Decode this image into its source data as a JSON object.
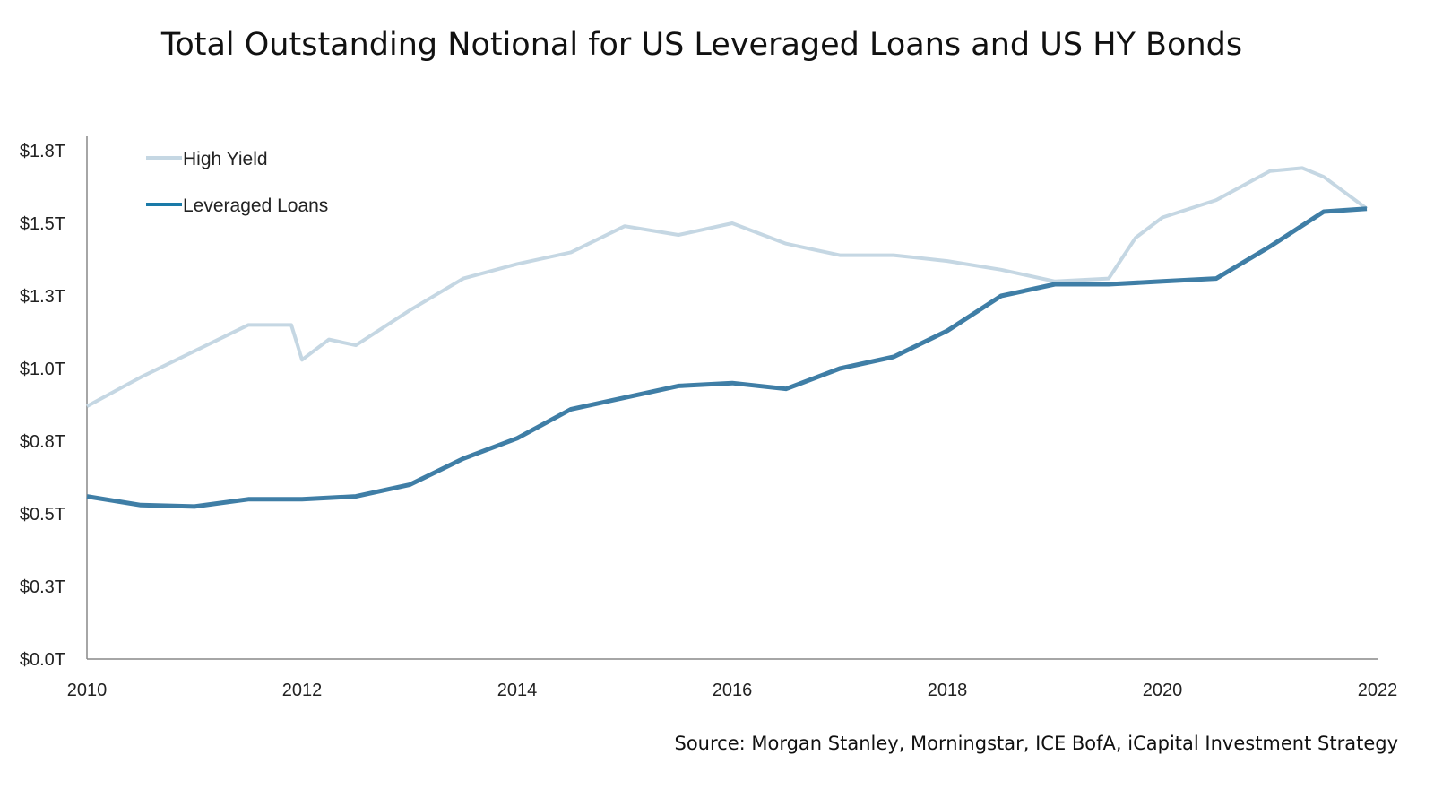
{
  "chart_data": {
    "type": "line",
    "title": "Total Outstanding Notional for US Leveraged Loans and US HY Bonds",
    "source": "Source: Morgan Stanley, Morningstar, ICE BofA, iCapital Investment Strategy",
    "xlabel": "",
    "ylabel": "",
    "xlim": [
      2010,
      2022
    ],
    "ylim": [
      0,
      1.75
    ],
    "x_ticks": [
      "2010",
      "2012",
      "2014",
      "2016",
      "2018",
      "2020",
      "2022"
    ],
    "y_ticks": [
      {
        "value": 0,
        "label": "$0.0T"
      },
      {
        "value": 0.25,
        "label": "$0.3T"
      },
      {
        "value": 0.5,
        "label": "$0.5T"
      },
      {
        "value": 0.75,
        "label": "$0.8T"
      },
      {
        "value": 1.0,
        "label": "$1.0T"
      },
      {
        "value": 1.25,
        "label": "$1.3T"
      },
      {
        "value": 1.5,
        "label": "$1.5T"
      },
      {
        "value": 1.75,
        "label": "$1.8T"
      }
    ],
    "grid": false,
    "legend": "top-left",
    "series": [
      {
        "name": "High Yield",
        "color": "#c5d7e3",
        "x": [
          2010,
          2010.5,
          2011,
          2011.5,
          2011.9,
          2012,
          2012.25,
          2012.5,
          2013,
          2013.5,
          2014,
          2014.5,
          2015,
          2015.5,
          2016,
          2016.5,
          2017,
          2017.5,
          2018,
          2018.5,
          2019,
          2019.5,
          2019.75,
          2020,
          2020.5,
          2021,
          2021.3,
          2021.5,
          2021.9
        ],
        "y": [
          0.87,
          0.97,
          1.06,
          1.15,
          1.15,
          1.03,
          1.1,
          1.08,
          1.2,
          1.31,
          1.36,
          1.4,
          1.49,
          1.46,
          1.5,
          1.43,
          1.39,
          1.39,
          1.37,
          1.34,
          1.3,
          1.31,
          1.45,
          1.52,
          1.58,
          1.68,
          1.69,
          1.66,
          1.55
        ]
      },
      {
        "name": "Leveraged Loans",
        "color": "#3f7ea6",
        "legend_color": "#1a7aa8",
        "x": [
          2010,
          2010.5,
          2011,
          2011.5,
          2012,
          2012.5,
          2013,
          2013.5,
          2014,
          2014.5,
          2015,
          2015.5,
          2016,
          2016.5,
          2017,
          2017.5,
          2018,
          2018.5,
          2019,
          2019.5,
          2020,
          2020.5,
          2021,
          2021.5,
          2021.9
        ],
        "y": [
          0.56,
          0.53,
          0.525,
          0.55,
          0.55,
          0.56,
          0.6,
          0.69,
          0.76,
          0.86,
          0.9,
          0.94,
          0.95,
          0.93,
          1.0,
          1.04,
          1.13,
          1.25,
          1.29,
          1.29,
          1.3,
          1.31,
          1.42,
          1.54,
          1.55
        ]
      }
    ]
  }
}
